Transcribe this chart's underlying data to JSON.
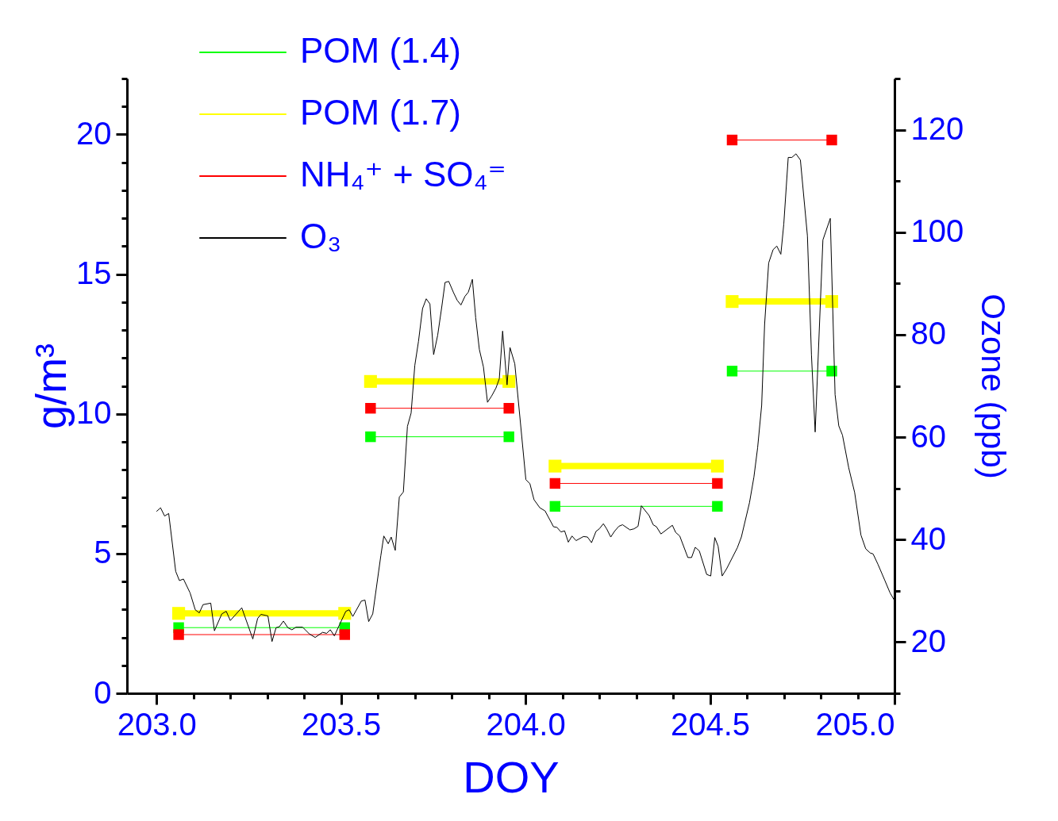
{
  "chart_data": {
    "type": "line",
    "xlabel": "DOY",
    "ylabel": "g/m³",
    "y2label": "Ozone (ppb)",
    "marker": "square",
    "legend": "top left",
    "xlim": [
      202.92,
      205
    ],
    "xticks": [
      {
        "value": 203,
        "label": "203.0"
      },
      {
        "value": 203.1,
        "label": null
      },
      {
        "value": 203.2,
        "label": null
      },
      {
        "value": 203.3,
        "label": null
      },
      {
        "value": 203.4,
        "label": null
      },
      203.5,
      {
        "value": 203.6,
        "label": null
      },
      {
        "value": 203.7,
        "label": null
      },
      {
        "value": 203.8,
        "label": null
      },
      {
        "value": 203.9,
        "label": null
      },
      {
        "value": 204,
        "label": "204.0"
      },
      {
        "value": 204.1,
        "label": null
      },
      {
        "value": 204.2,
        "label": null
      },
      {
        "value": 204.3,
        "label": null
      },
      {
        "value": 204.4,
        "label": null
      },
      204.5,
      {
        "value": 204.6,
        "label": null
      },
      {
        "value": 204.7,
        "label": null
      },
      {
        "value": 204.8,
        "label": null
      },
      {
        "value": 204.9,
        "label": null
      },
      {
        "value": 205,
        "label": "205.0"
      }
    ],
    "ylim": [
      0,
      22
    ],
    "yticks": [
      0,
      {
        "value": 1,
        "label": null
      },
      {
        "value": 2,
        "label": null
      },
      {
        "value": 3,
        "label": null
      },
      {
        "value": 4,
        "label": null
      },
      5,
      {
        "value": 6,
        "label": null
      },
      {
        "value": 7,
        "label": null
      },
      {
        "value": 8,
        "label": null
      },
      {
        "value": 9,
        "label": null
      },
      10,
      {
        "value": 11,
        "label": null
      },
      {
        "value": 12,
        "label": null
      },
      {
        "value": 13,
        "label": null
      },
      {
        "value": 14,
        "label": null
      },
      15,
      {
        "value": 16,
        "label": null
      },
      {
        "value": 17,
        "label": null
      },
      {
        "value": 18,
        "label": null
      },
      {
        "value": 19,
        "label": null
      },
      20,
      {
        "value": 21,
        "label": null
      },
      {
        "value": 22,
        "label": null
      }
    ],
    "y2lim": [
      10,
      130
    ],
    "y2ticks": [
      {
        "value": 10,
        "label": null
      },
      20,
      {
        "value": 30,
        "label": null
      },
      40,
      {
        "value": 50,
        "label": null
      },
      60,
      {
        "value": 70,
        "label": null
      },
      80,
      {
        "value": 90,
        "label": null
      },
      100,
      {
        "value": 110,
        "label": null
      },
      120,
      {
        "value": 130,
        "label": null
      }
    ],
    "series": [
      {
        "name": "POM (1.4)",
        "color": "#00ff00",
        "x": [
          203.06,
          203.51,
          203.545,
          203.58,
          203.955,
          204.02,
          204.08,
          204.52,
          204.54,
          204.56,
          204.83
        ],
        "values": [
          2.35,
          2.35,
          null,
          9.18,
          9.18,
          null,
          6.69,
          6.69,
          null,
          11.53,
          11.53
        ]
      },
      {
        "name": "POM (1.7)",
        "color": "#ffff00",
        "x": [
          203.06,
          203.51,
          203.545,
          203.58,
          203.955,
          204.02,
          204.08,
          204.52,
          204.54,
          204.56,
          204.83
        ],
        "values": [
          2.86,
          2.86,
          null,
          11.16,
          11.16,
          null,
          8.13,
          8.13,
          null,
          14.02,
          14.02
        ]
      },
      {
        "name": "NH₄⁺ + SO₄⁼",
        "color": "#ff0000",
        "x": [
          203.06,
          203.51,
          203.545,
          203.58,
          203.955,
          204.02,
          204.08,
          204.52,
          204.54,
          204.56,
          204.83
        ],
        "values": [
          2.1,
          2.1,
          null,
          10.2,
          10.2,
          null,
          7.51,
          7.51,
          null,
          19.8,
          19.8
        ]
      },
      {
        "name": "O₃",
        "color": "#000000",
        "axis": "y2",
        "marker": "none",
        "x": [
          203.0,
          203.011,
          203.022,
          203.033,
          203.052,
          203.062,
          203.073,
          203.091,
          203.105,
          203.116,
          203.126,
          203.147,
          203.157,
          203.177,
          203.189,
          203.2,
          203.231,
          203.261,
          203.274,
          203.283,
          203.302,
          203.313,
          203.324,
          203.333,
          203.344,
          203.356,
          203.367,
          203.378,
          203.396,
          203.414,
          203.43,
          203.45,
          203.461,
          203.471,
          203.482,
          203.496,
          203.513,
          203.522,
          203.532,
          203.555,
          203.565,
          203.575,
          203.586,
          203.608,
          203.616,
          203.628,
          203.636,
          203.647,
          203.658,
          203.669,
          203.68,
          203.69,
          203.7,
          203.71,
          203.721,
          203.731,
          203.741,
          203.751,
          203.762,
          203.773,
          203.782,
          203.792,
          203.805,
          203.815,
          203.825,
          203.836,
          203.845,
          203.856,
          203.865,
          203.875,
          203.886,
          203.897,
          203.908,
          203.92,
          203.929,
          203.938,
          203.95,
          203.958,
          203.971,
          204.001,
          204.012,
          204.023,
          204.039,
          204.053,
          204.076,
          204.085,
          204.096,
          204.106,
          204.116,
          204.126,
          204.137,
          204.157,
          204.168,
          204.179,
          204.191,
          204.2,
          204.211,
          204.22,
          204.231,
          204.241,
          204.253,
          204.263,
          204.283,
          204.294,
          204.305,
          204.314,
          204.335,
          204.346,
          204.355,
          204.367,
          204.398,
          204.407,
          204.418,
          204.44,
          204.45,
          204.46,
          204.471,
          204.491,
          204.502,
          204.513,
          204.522,
          204.533,
          204.545,
          204.574,
          204.585,
          204.607,
          204.619,
          204.629,
          204.64,
          204.648,
          204.659,
          204.671,
          204.681,
          204.692,
          204.7,
          204.712,
          204.722,
          204.733,
          204.745,
          204.764,
          204.775,
          204.785,
          204.806,
          204.826,
          204.839,
          204.849,
          204.859,
          204.876,
          204.892,
          204.909,
          204.922,
          204.934,
          204.942,
          204.955,
          204.974,
          204.988,
          205.0
        ],
        "values": [
          45.5,
          46.2,
          44.6,
          45.1,
          33.8,
          32.0,
          32.3,
          29.6,
          26.3,
          25.7,
          27.3,
          27.6,
          22.2,
          25.5,
          26.0,
          24.2,
          26.7,
          20.6,
          24.6,
          25.4,
          25.1,
          20.1,
          22.8,
          23.0,
          24.1,
          22.8,
          22.4,
          22.9,
          22.9,
          21.6,
          20.9,
          21.9,
          21.7,
          22.4,
          21.2,
          23.4,
          26.0,
          26.3,
          25.0,
          28.0,
          28.2,
          24.0,
          25.5,
          36.9,
          40.7,
          39.2,
          40.5,
          37.9,
          48.3,
          49.3,
          62.1,
          64.7,
          74.0,
          78.7,
          85.1,
          87.0,
          86.0,
          76.1,
          79.9,
          85.4,
          90.2,
          90.4,
          88.2,
          86.7,
          85.8,
          87.5,
          88.3,
          90.8,
          83.3,
          77.1,
          73.7,
          66.8,
          68.0,
          69.6,
          71.4,
          80.7,
          70.2,
          77.5,
          74.3,
          51.7,
          50.9,
          47.8,
          46.2,
          45.6,
          42.5,
          42.4,
          41.5,
          41.7,
          39.5,
          40.7,
          39.8,
          40.6,
          40.5,
          39.4,
          41.6,
          42.1,
          43.1,
          42.1,
          40.5,
          41.6,
          42.6,
          42.9,
          41.9,
          42.1,
          42.6,
          46.6,
          44.7,
          42.9,
          42.5,
          41.1,
          42.8,
          41.4,
          40.7,
          36.5,
          36.5,
          38.5,
          37.8,
          33.2,
          32.9,
          40.4,
          38.7,
          32.9,
          34.3,
          38.4,
          40.5,
          47.2,
          52.2,
          57.9,
          66.2,
          82.0,
          94.0,
          96.6,
          97.3,
          95.7,
          101.6,
          114.6,
          114.6,
          115.3,
          114.1,
          99.3,
          76.0,
          61.0,
          98.5,
          102.7,
          68.3,
          62.2,
          60.4,
          54.0,
          49.2,
          40.9,
          38.2,
          37.4,
          37.2,
          35.2,
          32.0,
          29.6,
          28.1
        ]
      }
    ]
  }
}
